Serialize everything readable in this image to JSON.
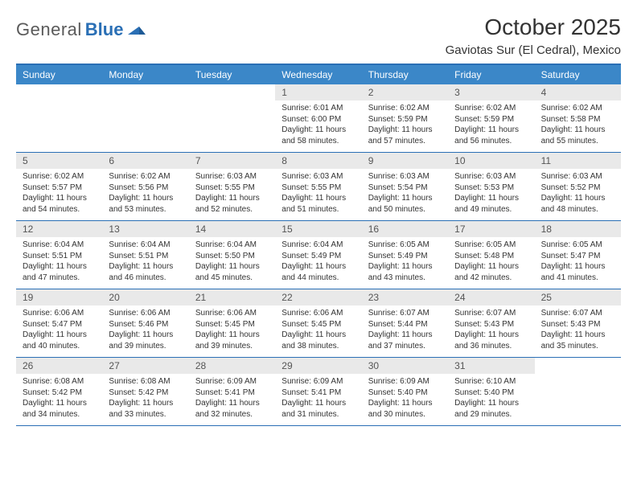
{
  "logo": {
    "part1": "General",
    "part2": "Blue"
  },
  "header": {
    "title": "October 2025",
    "location": "Gaviotas Sur (El Cedral), Mexico"
  },
  "weekdays": [
    "Sunday",
    "Monday",
    "Tuesday",
    "Wednesday",
    "Thursday",
    "Friday",
    "Saturday"
  ],
  "colors": {
    "header_bar": "#3b87c8",
    "border": "#2a6fb5",
    "daynum_bg": "#e9e9e9",
    "text": "#333333",
    "logo_gray": "#5a5a5a",
    "logo_blue": "#2a6fb5"
  },
  "fonts": {
    "title_pt": 28,
    "subtitle_pt": 15,
    "weekday_pt": 12,
    "daynum_pt": 12,
    "body_pt": 10
  },
  "layout": {
    "columns": 7,
    "rows": 5,
    "first_weekday_index": 3
  },
  "days": [
    {
      "n": 1,
      "sunrise": "6:01 AM",
      "sunset": "6:00 PM",
      "daylight": "11 hours and 58 minutes."
    },
    {
      "n": 2,
      "sunrise": "6:02 AM",
      "sunset": "5:59 PM",
      "daylight": "11 hours and 57 minutes."
    },
    {
      "n": 3,
      "sunrise": "6:02 AM",
      "sunset": "5:59 PM",
      "daylight": "11 hours and 56 minutes."
    },
    {
      "n": 4,
      "sunrise": "6:02 AM",
      "sunset": "5:58 PM",
      "daylight": "11 hours and 55 minutes."
    },
    {
      "n": 5,
      "sunrise": "6:02 AM",
      "sunset": "5:57 PM",
      "daylight": "11 hours and 54 minutes."
    },
    {
      "n": 6,
      "sunrise": "6:02 AM",
      "sunset": "5:56 PM",
      "daylight": "11 hours and 53 minutes."
    },
    {
      "n": 7,
      "sunrise": "6:03 AM",
      "sunset": "5:55 PM",
      "daylight": "11 hours and 52 minutes."
    },
    {
      "n": 8,
      "sunrise": "6:03 AM",
      "sunset": "5:55 PM",
      "daylight": "11 hours and 51 minutes."
    },
    {
      "n": 9,
      "sunrise": "6:03 AM",
      "sunset": "5:54 PM",
      "daylight": "11 hours and 50 minutes."
    },
    {
      "n": 10,
      "sunrise": "6:03 AM",
      "sunset": "5:53 PM",
      "daylight": "11 hours and 49 minutes."
    },
    {
      "n": 11,
      "sunrise": "6:03 AM",
      "sunset": "5:52 PM",
      "daylight": "11 hours and 48 minutes."
    },
    {
      "n": 12,
      "sunrise": "6:04 AM",
      "sunset": "5:51 PM",
      "daylight": "11 hours and 47 minutes."
    },
    {
      "n": 13,
      "sunrise": "6:04 AM",
      "sunset": "5:51 PM",
      "daylight": "11 hours and 46 minutes."
    },
    {
      "n": 14,
      "sunrise": "6:04 AM",
      "sunset": "5:50 PM",
      "daylight": "11 hours and 45 minutes."
    },
    {
      "n": 15,
      "sunrise": "6:04 AM",
      "sunset": "5:49 PM",
      "daylight": "11 hours and 44 minutes."
    },
    {
      "n": 16,
      "sunrise": "6:05 AM",
      "sunset": "5:49 PM",
      "daylight": "11 hours and 43 minutes."
    },
    {
      "n": 17,
      "sunrise": "6:05 AM",
      "sunset": "5:48 PM",
      "daylight": "11 hours and 42 minutes."
    },
    {
      "n": 18,
      "sunrise": "6:05 AM",
      "sunset": "5:47 PM",
      "daylight": "11 hours and 41 minutes."
    },
    {
      "n": 19,
      "sunrise": "6:06 AM",
      "sunset": "5:47 PM",
      "daylight": "11 hours and 40 minutes."
    },
    {
      "n": 20,
      "sunrise": "6:06 AM",
      "sunset": "5:46 PM",
      "daylight": "11 hours and 39 minutes."
    },
    {
      "n": 21,
      "sunrise": "6:06 AM",
      "sunset": "5:45 PM",
      "daylight": "11 hours and 39 minutes."
    },
    {
      "n": 22,
      "sunrise": "6:06 AM",
      "sunset": "5:45 PM",
      "daylight": "11 hours and 38 minutes."
    },
    {
      "n": 23,
      "sunrise": "6:07 AM",
      "sunset": "5:44 PM",
      "daylight": "11 hours and 37 minutes."
    },
    {
      "n": 24,
      "sunrise": "6:07 AM",
      "sunset": "5:43 PM",
      "daylight": "11 hours and 36 minutes."
    },
    {
      "n": 25,
      "sunrise": "6:07 AM",
      "sunset": "5:43 PM",
      "daylight": "11 hours and 35 minutes."
    },
    {
      "n": 26,
      "sunrise": "6:08 AM",
      "sunset": "5:42 PM",
      "daylight": "11 hours and 34 minutes."
    },
    {
      "n": 27,
      "sunrise": "6:08 AM",
      "sunset": "5:42 PM",
      "daylight": "11 hours and 33 minutes."
    },
    {
      "n": 28,
      "sunrise": "6:09 AM",
      "sunset": "5:41 PM",
      "daylight": "11 hours and 32 minutes."
    },
    {
      "n": 29,
      "sunrise": "6:09 AM",
      "sunset": "5:41 PM",
      "daylight": "11 hours and 31 minutes."
    },
    {
      "n": 30,
      "sunrise": "6:09 AM",
      "sunset": "5:40 PM",
      "daylight": "11 hours and 30 minutes."
    },
    {
      "n": 31,
      "sunrise": "6:10 AM",
      "sunset": "5:40 PM",
      "daylight": "11 hours and 29 minutes."
    }
  ],
  "labels": {
    "sunrise": "Sunrise:",
    "sunset": "Sunset:",
    "daylight": "Daylight:"
  }
}
